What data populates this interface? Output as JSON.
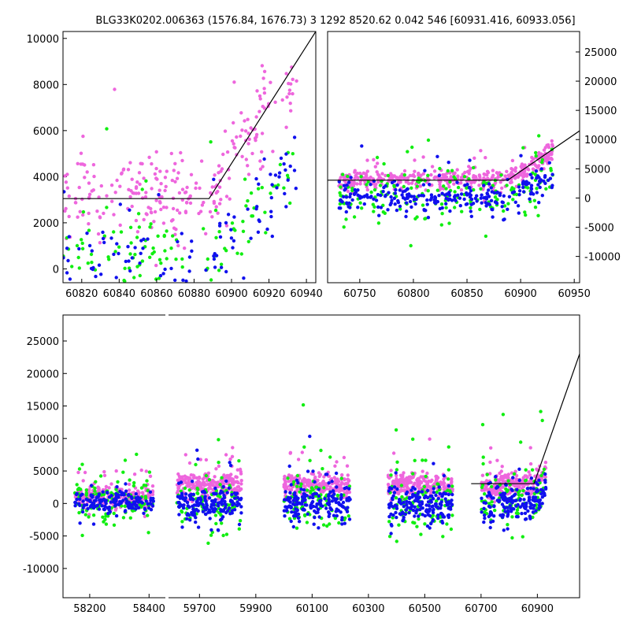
{
  "title": "BLG33K0202.006363 (1576.84, 1676.73)    3 1292 8520.62 0.042 546 [60931.416, 60933.056]",
  "colors": {
    "magenta": "#ee66dd",
    "blue": "#1010ee",
    "green": "#11ee11",
    "model": "#000000"
  },
  "chart_data": [
    {
      "id": "top-left",
      "type": "scatter",
      "xlim": [
        60810,
        60945
      ],
      "ylim": [
        -600,
        10300
      ],
      "xticks": [
        60820,
        60840,
        60860,
        60880,
        60900,
        60920,
        60940
      ],
      "yticks": [
        0,
        2000,
        4000,
        6000,
        8000,
        10000
      ],
      "yaxis_side": "left",
      "model": [
        [
          60810,
          3050
        ],
        [
          60888,
          3050
        ],
        [
          60945,
          10300
        ]
      ],
      "series": [
        {
          "color": "magenta",
          "center": 3200,
          "spread": 900,
          "count": 260,
          "x_range": [
            60810,
            60935
          ],
          "rise": true
        },
        {
          "color": "green",
          "center": 500,
          "spread": 900,
          "count": 120,
          "x_range": [
            60810,
            60935
          ],
          "rise": true
        },
        {
          "color": "blue",
          "center": 300,
          "spread": 800,
          "count": 110,
          "x_range": [
            60810,
            60935
          ],
          "rise": true
        }
      ]
    },
    {
      "id": "top-right",
      "type": "scatter",
      "xlim": [
        60720,
        60955
      ],
      "ylim": [
        -14500,
        28500
      ],
      "xticks": [
        60750,
        60800,
        60850,
        60900,
        60950
      ],
      "yticks": [
        -10000,
        -5000,
        0,
        5000,
        10000,
        15000,
        20000,
        25000
      ],
      "yaxis_side": "right",
      "model": [
        [
          60720,
          3050
        ],
        [
          60888,
          3050
        ],
        [
          60955,
          11500
        ]
      ],
      "series": [
        {
          "color": "magenta",
          "center": 3100,
          "spread": 900,
          "count": 420,
          "x_range": [
            60730,
            60930
          ],
          "rise": true
        },
        {
          "color": "green",
          "center": 100,
          "spread": 2200,
          "count": 180,
          "x_range": [
            60730,
            60930
          ],
          "rise": true
        },
        {
          "color": "blue",
          "center": 0,
          "spread": 1400,
          "count": 260,
          "x_range": [
            60730,
            60930
          ],
          "rise": true
        }
      ]
    },
    {
      "id": "bottom",
      "type": "scatter",
      "ylim": [
        -14500,
        29000
      ],
      "yticks": [
        -10000,
        -5000,
        0,
        5000,
        10000,
        15000,
        20000,
        25000
      ],
      "yaxis_side": "left",
      "segments": [
        {
          "xlim": [
            58110,
            58455
          ],
          "xticks": [
            58200,
            58400
          ],
          "model": null,
          "series": [
            {
              "color": "magenta",
              "center": 900,
              "spread": 800,
              "count": 260,
              "x_range": [
                58150,
                58415
              ]
            },
            {
              "color": "green",
              "center": 300,
              "spread": 1800,
              "count": 120,
              "x_range": [
                58150,
                58415
              ]
            },
            {
              "color": "blue",
              "center": 200,
              "spread": 1000,
              "count": 160,
              "x_range": [
                58150,
                58415
              ]
            }
          ]
        },
        {
          "xlim": [
            59590,
            61050
          ],
          "xticks": [
            59700,
            59900,
            60100,
            60300,
            60500,
            60700,
            60900
          ],
          "model": [
            [
              60665,
              3050
            ],
            [
              60888,
              3050
            ],
            [
              61050,
              23000
            ]
          ],
          "series": [
            {
              "color": "magenta",
              "center": 2800,
              "spread": 900,
              "count": 900,
              "x_range": [
                59620,
                60930
              ]
            },
            {
              "color": "green",
              "center": 0,
              "spread": 2200,
              "count": 380,
              "x_range": [
                59620,
                60930
              ]
            },
            {
              "color": "blue",
              "center": -200,
              "spread": 1400,
              "count": 700,
              "x_range": [
                59620,
                60930
              ]
            }
          ],
          "seasons": [
            [
              59620,
              59850
            ],
            [
              60000,
              60235
            ],
            [
              60370,
              60600
            ],
            [
              60700,
              60930
            ]
          ]
        }
      ]
    }
  ]
}
